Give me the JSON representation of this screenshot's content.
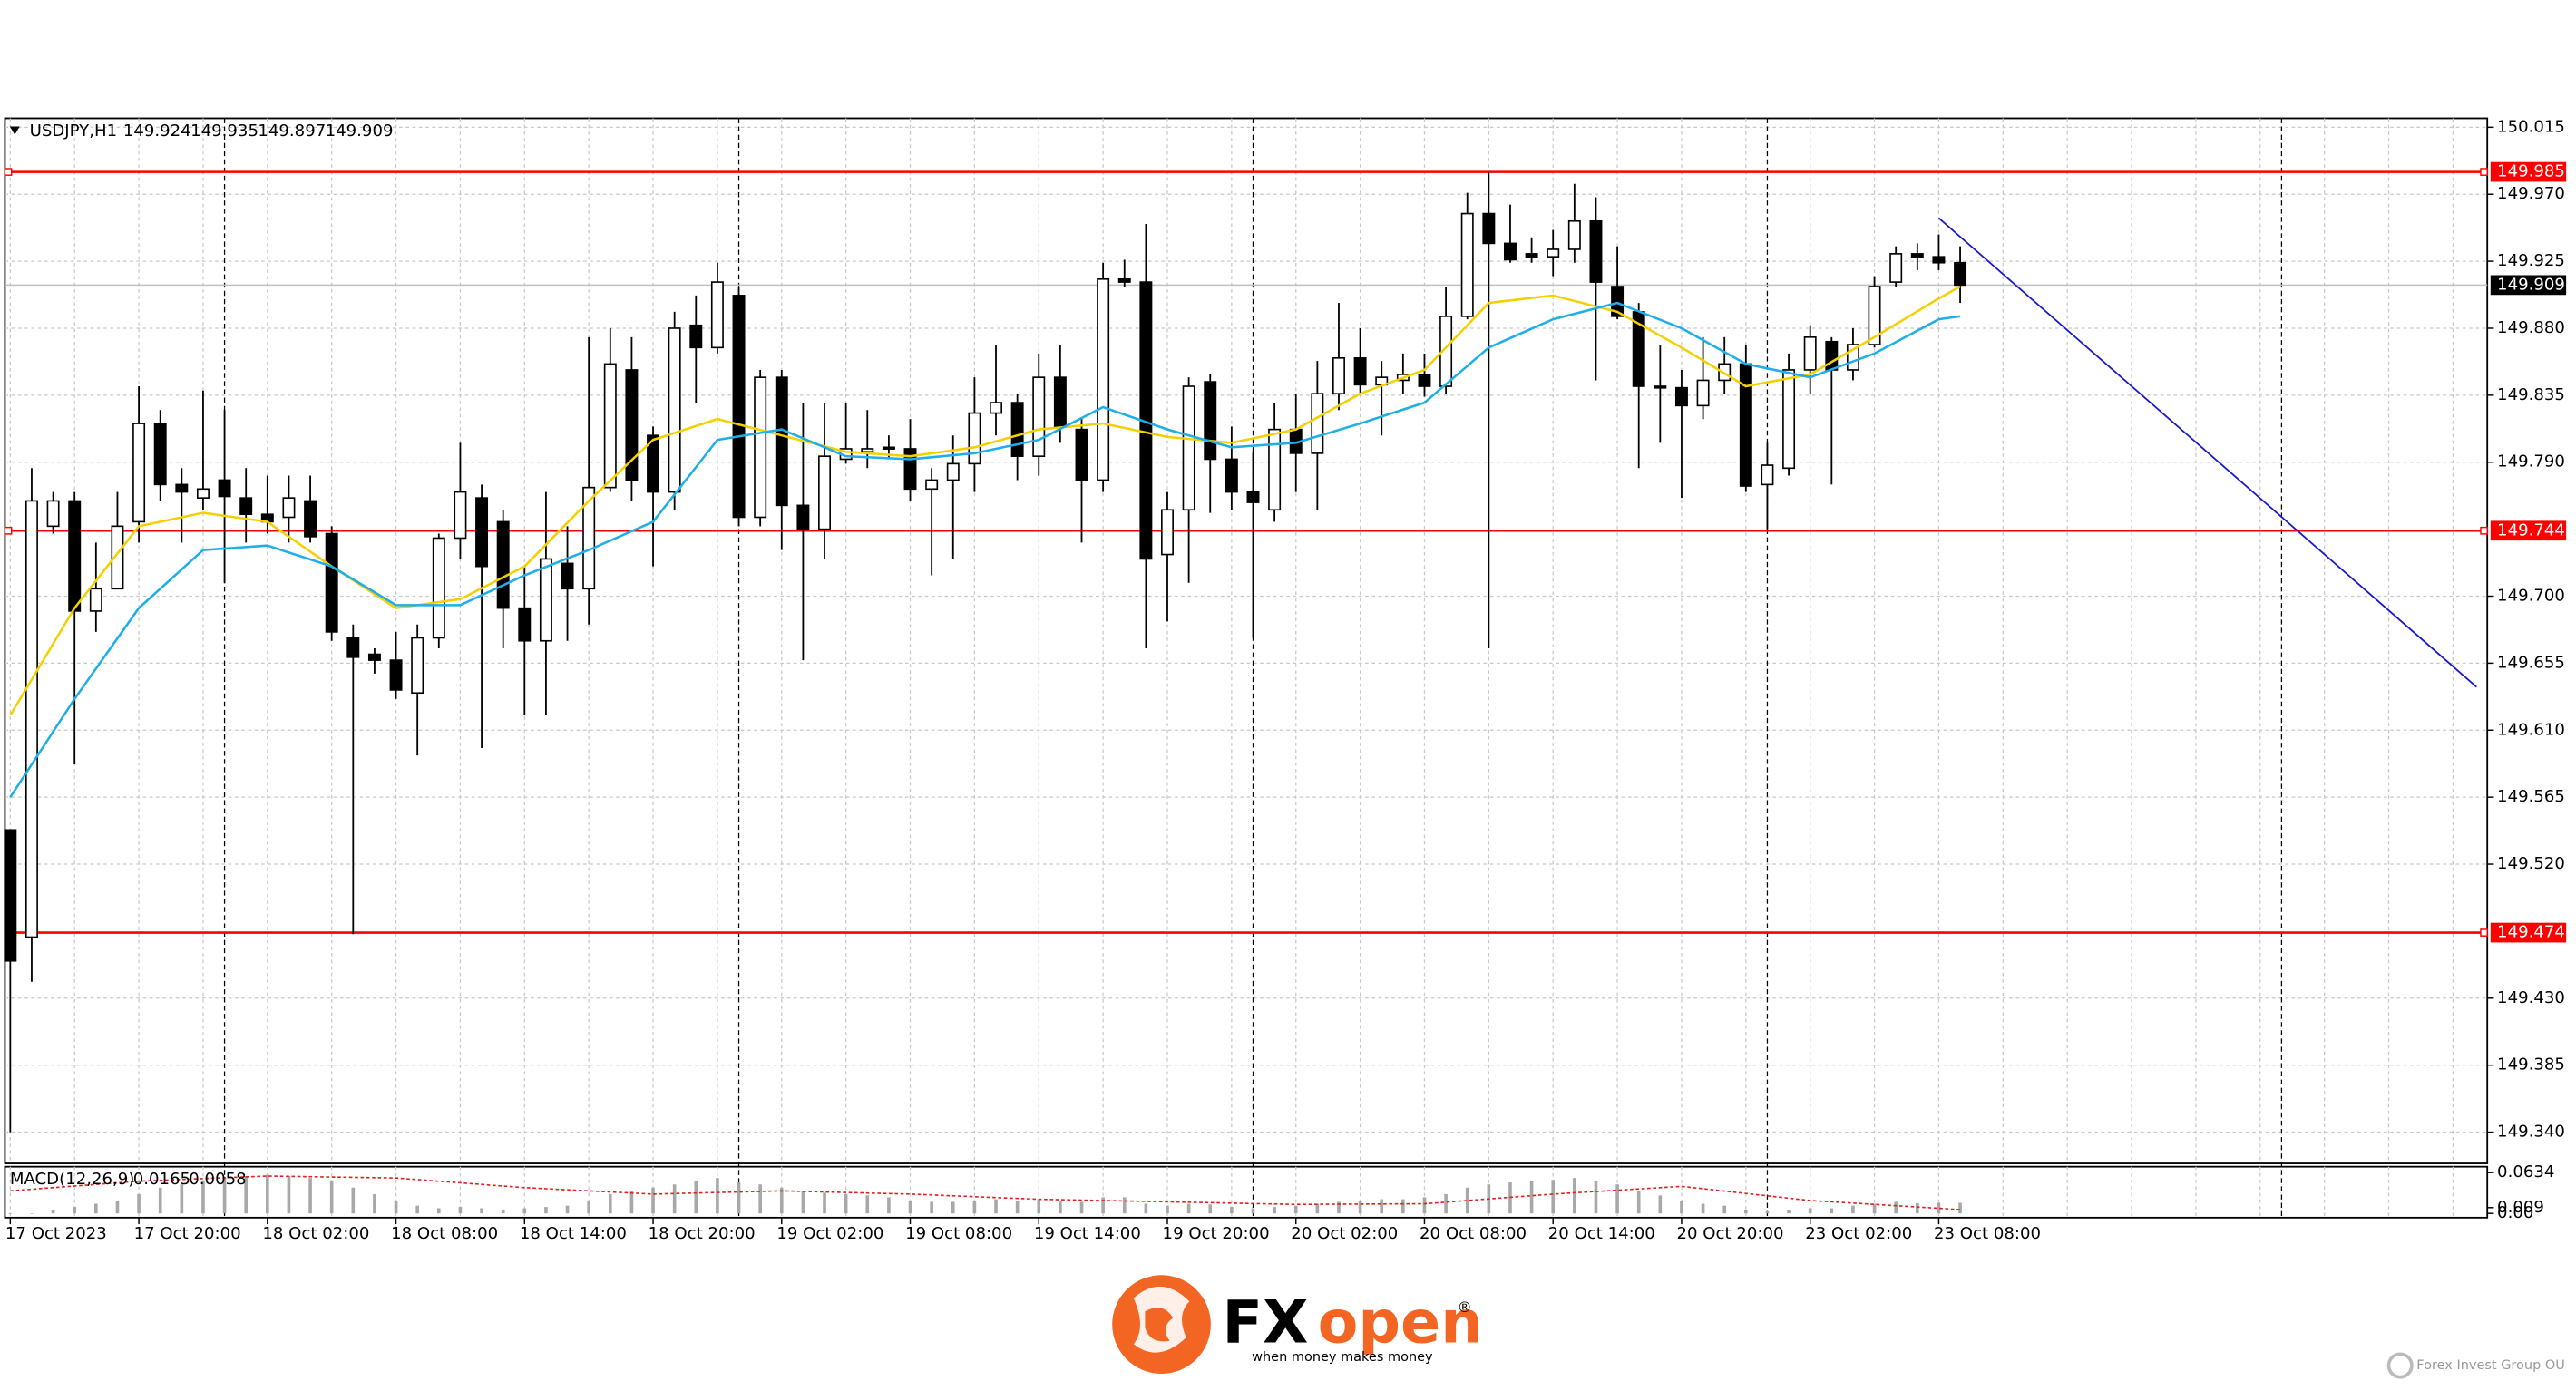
{
  "chart_data": {
    "type": "candlestick",
    "title": "USDJPY,H1",
    "categories": [
      "17 Oct 2023",
      null,
      null,
      null,
      null,
      null,
      "17 Oct 20:00",
      null,
      null,
      null,
      null,
      null,
      "18 Oct 02:00",
      null,
      null,
      null,
      null,
      null,
      "18 Oct 08:00",
      null,
      null,
      null,
      null,
      null,
      "18 Oct 14:00",
      null,
      null,
      null,
      null,
      null,
      "18 Oct 20:00",
      null,
      null,
      null,
      null,
      null,
      "19 Oct 02:00",
      null,
      null,
      null,
      null,
      null,
      "19 Oct 08:00",
      null,
      null,
      null,
      null,
      null,
      "19 Oct 14:00",
      null,
      null,
      null,
      null,
      null,
      "19 Oct 20:00",
      null,
      null,
      null,
      null,
      null,
      "20 Oct 02:00",
      null,
      null,
      null,
      null,
      null,
      "20 Oct 08:00",
      null,
      null,
      null,
      null,
      null,
      "20 Oct 14:00",
      null,
      null,
      null,
      null,
      null,
      "20 Oct 20:00",
      null,
      null,
      null,
      null,
      null,
      "23 Oct 02:00",
      null,
      null,
      null,
      null,
      null,
      "23 Oct 08:00",
      null
    ],
    "candles": {
      "open": [
        149.543,
        149.471,
        149.747,
        149.764,
        149.69,
        149.705,
        149.75,
        149.816,
        149.775,
        149.766,
        149.778,
        149.766,
        149.755,
        149.753,
        149.764,
        149.742,
        149.672,
        149.661,
        149.657,
        149.635,
        149.672,
        149.739,
        149.766,
        149.75,
        149.692,
        149.67,
        149.722,
        149.705,
        149.773,
        149.852,
        149.808,
        149.77,
        149.882,
        149.867,
        149.902,
        149.753,
        149.847,
        149.761,
        149.745,
        149.792,
        149.797,
        149.8,
        149.799,
        149.772,
        149.778,
        149.789,
        149.823,
        149.83,
        149.794,
        149.847,
        149.812,
        149.778,
        149.913,
        149.911,
        149.728,
        149.758,
        149.844,
        149.792,
        149.77,
        149.758,
        149.812,
        149.796,
        149.836,
        149.86,
        149.842,
        149.845,
        149.849,
        149.841,
        149.888,
        149.957,
        149.937,
        149.93,
        149.928,
        149.933,
        149.952,
        149.908,
        149.891,
        149.841,
        149.84,
        149.828,
        149.845,
        149.856,
        149.775,
        149.786,
        149.852,
        149.871,
        149.852,
        149.869,
        149.911,
        149.93,
        149.928,
        149.924
      ],
      "high": [
        149.543,
        149.786,
        149.77,
        149.77,
        149.736,
        149.77,
        149.841,
        149.825,
        149.786,
        149.838,
        149.825,
        149.786,
        149.781,
        149.781,
        149.781,
        149.747,
        149.681,
        149.665,
        149.676,
        149.681,
        149.742,
        149.803,
        149.775,
        149.758,
        149.72,
        149.77,
        149.747,
        149.874,
        149.88,
        149.874,
        149.814,
        149.891,
        149.902,
        149.924,
        149.908,
        149.852,
        149.852,
        149.83,
        149.83,
        149.83,
        149.825,
        149.808,
        149.819,
        149.786,
        149.808,
        149.847,
        149.869,
        149.836,
        149.863,
        149.869,
        149.819,
        149.924,
        149.926,
        149.95,
        149.77,
        149.847,
        149.849,
        149.814,
        149.797,
        149.83,
        149.836,
        149.858,
        149.897,
        149.88,
        149.858,
        149.863,
        149.863,
        149.908,
        149.971,
        149.985,
        149.963,
        149.941,
        149.946,
        149.977,
        149.968,
        149.935,
        149.897,
        149.869,
        149.852,
        149.874,
        149.874,
        149.869,
        149.803,
        149.863,
        149.882,
        149.874,
        149.88,
        149.915,
        149.935,
        149.937,
        149.943,
        149.935
      ],
      "low": [
        149.34,
        149.441,
        149.742,
        149.587,
        149.676,
        149.709,
        149.736,
        149.764,
        149.736,
        149.758,
        149.709,
        149.736,
        149.742,
        149.736,
        149.736,
        149.67,
        149.473,
        149.648,
        149.631,
        149.593,
        149.665,
        149.725,
        149.598,
        149.665,
        149.62,
        149.62,
        149.67,
        149.681,
        149.77,
        149.764,
        149.72,
        149.758,
        149.83,
        149.863,
        149.747,
        149.747,
        149.731,
        149.657,
        149.725,
        149.789,
        149.786,
        149.792,
        149.764,
        149.714,
        149.725,
        149.77,
        149.808,
        149.778,
        149.781,
        149.803,
        149.736,
        149.77,
        149.908,
        149.665,
        149.683,
        149.709,
        149.756,
        149.758,
        149.672,
        149.75,
        149.77,
        149.758,
        149.825,
        149.836,
        149.808,
        149.836,
        149.834,
        149.836,
        149.886,
        149.665,
        149.924,
        149.924,
        149.915,
        149.924,
        149.845,
        149.886,
        149.786,
        149.803,
        149.766,
        149.819,
        149.836,
        149.77,
        149.745,
        149.781,
        149.836,
        149.775,
        149.845,
        149.867,
        149.908,
        149.919,
        149.919,
        149.897
      ],
      "close": [
        149.455,
        149.764,
        149.764,
        149.69,
        149.705,
        149.747,
        149.816,
        149.775,
        149.77,
        149.772,
        149.767,
        149.755,
        149.75,
        149.766,
        149.74,
        149.676,
        149.659,
        149.657,
        149.637,
        149.672,
        149.739,
        149.77,
        149.72,
        149.692,
        149.67,
        149.725,
        149.705,
        149.773,
        149.856,
        149.778,
        149.77,
        149.88,
        149.867,
        149.911,
        149.753,
        149.847,
        149.761,
        149.745,
        149.794,
        149.799,
        149.799,
        149.799,
        149.772,
        149.778,
        149.789,
        149.823,
        149.83,
        149.794,
        149.847,
        149.814,
        149.778,
        149.913,
        149.911,
        149.725,
        149.758,
        149.841,
        149.792,
        149.77,
        149.763,
        149.812,
        149.796,
        149.836,
        149.86,
        149.842,
        149.847,
        149.849,
        149.841,
        149.888,
        149.957,
        149.937,
        149.926,
        149.928,
        149.933,
        149.952,
        149.911,
        149.888,
        149.841,
        149.84,
        149.828,
        149.845,
        149.856,
        149.774,
        149.788,
        149.852,
        149.874,
        149.852,
        149.869,
        149.908,
        149.93,
        149.928,
        149.924,
        149.909
      ]
    },
    "moving_averages": [
      {
        "color": "#f5d000",
        "x": [
          0,
          3,
          6,
          9,
          12,
          15,
          18,
          21,
          24,
          27,
          30,
          33,
          36,
          39,
          42,
          45,
          48,
          51,
          54,
          57,
          60,
          63,
          66,
          69,
          72,
          75,
          78,
          81,
          84,
          87,
          90,
          91
        ],
        "values": [
          149.62,
          149.692,
          149.747,
          149.756,
          149.75,
          149.72,
          149.692,
          149.698,
          149.72,
          149.764,
          149.805,
          149.819,
          149.808,
          149.797,
          149.794,
          149.8,
          149.812,
          149.816,
          149.807,
          149.803,
          149.812,
          149.836,
          149.852,
          149.897,
          149.902,
          149.891,
          149.867,
          149.841,
          149.849,
          149.874,
          149.9,
          149.908
        ]
      },
      {
        "color": "#1eaee8",
        "x": [
          0,
          3,
          6,
          9,
          12,
          15,
          18,
          21,
          24,
          27,
          30,
          33,
          36,
          39,
          42,
          45,
          48,
          51,
          54,
          57,
          60,
          63,
          66,
          69,
          72,
          75,
          78,
          81,
          84,
          87,
          90,
          91
        ],
        "values": [
          149.565,
          149.631,
          149.692,
          149.731,
          149.734,
          149.72,
          149.694,
          149.694,
          149.714,
          149.731,
          149.75,
          149.805,
          149.812,
          149.794,
          149.792,
          149.796,
          149.805,
          149.827,
          149.812,
          149.8,
          149.803,
          149.816,
          149.83,
          149.867,
          149.886,
          149.897,
          149.88,
          149.856,
          149.847,
          149.863,
          149.886,
          149.888
        ]
      }
    ],
    "levels": [
      {
        "value": 149.985,
        "color": "#ff0000"
      },
      {
        "value": 149.744,
        "color": "#ff0000"
      },
      {
        "value": 149.474,
        "color": "#ff0000"
      }
    ],
    "trendline": {
      "color": "#1a1acd",
      "x": [
        90,
        115.1
      ],
      "values": [
        149.954,
        149.639
      ]
    },
    "period_separators": [
      10,
      34,
      58,
      82,
      106
    ],
    "xlim": [
      -0.25,
      115.6
    ],
    "ylim": [
      149.319,
      150.021
    ],
    "yticks": [
      150.015,
      {
        "value": 149.97,
        "label": "149.970"
      },
      149.925,
      {
        "value": 149.88,
        "label": "149.880"
      },
      149.835,
      {
        "value": 149.79,
        "label": "149.790"
      },
      {
        "value": 149.7,
        "label": "149.700"
      },
      149.655,
      {
        "value": 149.61,
        "label": "149.610"
      },
      149.565,
      {
        "value": 149.52,
        "label": "149.520"
      },
      {
        "value": 149.43,
        "label": "149.430"
      },
      149.385,
      {
        "value": 149.34,
        "label": "149.340"
      }
    ],
    "grid": true,
    "macd": {
      "label": "MACD(12,26,9)",
      "histogram_color": "#a8a8a8",
      "signal_color": "#e02020",
      "histogram": [
        0,
        0,
        0.005,
        0.01,
        0.015,
        0.02,
        0.03,
        0.04,
        0.045,
        0.05,
        0.055,
        0.058,
        0.06,
        0.058,
        0.055,
        0.05,
        0.04,
        0.03,
        0.02,
        0.012,
        0.008,
        0.01,
        0.008,
        0.006,
        0.008,
        0.01,
        0.012,
        0.02,
        0.03,
        0.035,
        0.04,
        0.045,
        0.05,
        0.055,
        0.048,
        0.045,
        0.04,
        0.035,
        0.032,
        0.03,
        0.028,
        0.025,
        0.02,
        0.018,
        0.018,
        0.02,
        0.022,
        0.02,
        0.022,
        0.02,
        0.018,
        0.025,
        0.025,
        0.015,
        0.012,
        0.015,
        0.014,
        0.01,
        0.008,
        0.01,
        0.012,
        0.015,
        0.018,
        0.02,
        0.022,
        0.022,
        0.025,
        0.03,
        0.04,
        0.045,
        0.048,
        0.05,
        0.052,
        0.055,
        0.05,
        0.045,
        0.035,
        0.028,
        0.02,
        0.015,
        0.012,
        0.005,
        0.003,
        0.005,
        0.008,
        0.008,
        0.012,
        0.015,
        0.018,
        0.016,
        0.0165,
        0.0165
      ],
      "signal_x": [
        0,
        6,
        12,
        18,
        24,
        30,
        36,
        42,
        48,
        54,
        60,
        66,
        72,
        78,
        84,
        90,
        91
      ],
      "signal": [
        0.035,
        0.05,
        0.058,
        0.055,
        0.04,
        0.03,
        0.035,
        0.03,
        0.022,
        0.018,
        0.014,
        0.015,
        0.03,
        0.042,
        0.02,
        0.008,
        0.0058
      ],
      "ylim": [
        -0.004,
        0.07
      ],
      "yticks": [
        0.0634,
        0.009,
        {
          "value": 0,
          "label": "0.00"
        }
      ]
    }
  },
  "branding": {
    "logo_prefix": "FX",
    "logo_suffix": "open",
    "registered": "®",
    "tagline": "when money makes money",
    "company": "Forex Invest Group OU"
  }
}
